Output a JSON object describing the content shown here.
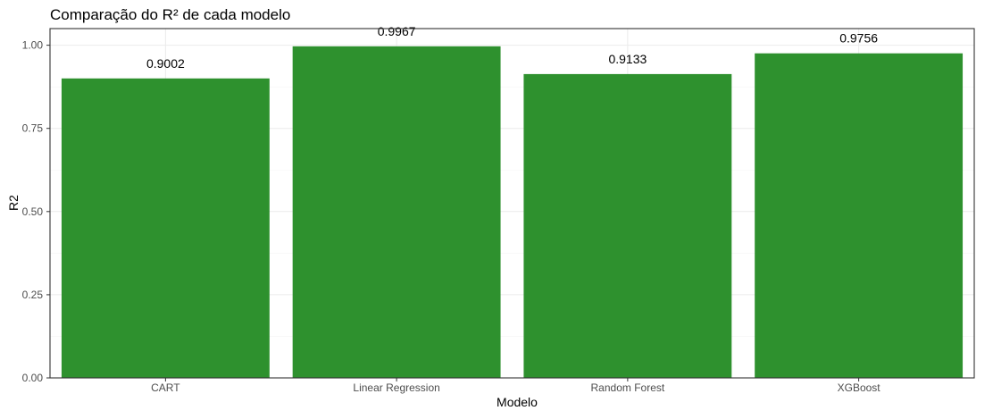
{
  "chart_data": {
    "type": "bar",
    "title": "Comparação do R² de cada modelo",
    "xlabel": "Modelo",
    "ylabel": "R2",
    "categories": [
      "CART",
      "Linear Regression",
      "Random Forest",
      "XGBoost"
    ],
    "values": [
      0.9002,
      0.9967,
      0.9133,
      0.9756
    ],
    "value_labels": [
      "0.9002",
      "0.9967",
      "0.9133",
      "0.9756"
    ],
    "yticks": [
      0.0,
      0.25,
      0.5,
      0.75,
      1.0
    ],
    "ytick_labels": [
      "0.00",
      "0.25",
      "0.50",
      "0.75",
      "1.00"
    ],
    "ylim": [
      0,
      1.05
    ],
    "grid": true,
    "legend": "none",
    "colors": {
      "bar": "#2e912e",
      "panel_border": "#333333",
      "grid": "#ebebeb"
    }
  }
}
